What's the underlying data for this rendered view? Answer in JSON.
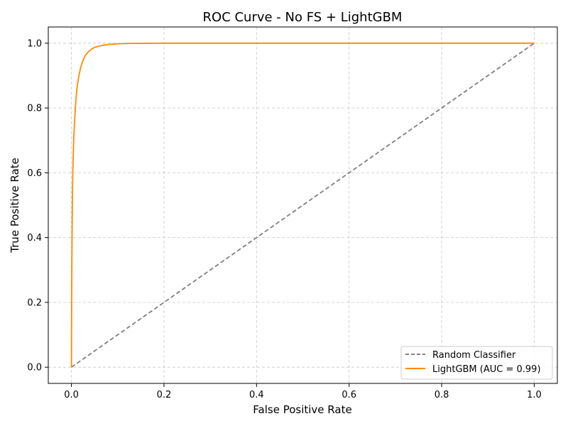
{
  "chart_data": {
    "type": "line",
    "title": "ROC Curve - No FS + LightGBM",
    "xlabel": "False Positive Rate",
    "ylabel": "True Positive Rate",
    "xlim": [
      -0.05,
      1.05
    ],
    "ylim": [
      -0.05,
      1.05
    ],
    "xticks": [
      "0.0",
      "0.2",
      "0.4",
      "0.6",
      "0.8",
      "1.0"
    ],
    "yticks": [
      "0.0",
      "0.2",
      "0.4",
      "0.6",
      "0.8",
      "1.0"
    ],
    "grid": true,
    "legend_position": "bottom-right",
    "series": [
      {
        "name": "Random Classifier",
        "style": "dashed",
        "color": "#808080",
        "x": [
          0,
          1
        ],
        "y": [
          0,
          1
        ]
      },
      {
        "name": "LightGBM (AUC = 0.99)",
        "style": "solid",
        "color": "#ff8c00",
        "x": [
          0,
          0.0005,
          0.001,
          0.002,
          0.003,
          0.004,
          0.005,
          0.006,
          0.008,
          0.01,
          0.012,
          0.015,
          0.018,
          0.02,
          0.025,
          0.03,
          0.035,
          0.04,
          0.045,
          0.05,
          0.06,
          0.07,
          0.08,
          0.09,
          0.1,
          0.12,
          0.15,
          0.2,
          0.3,
          0.5,
          0.75,
          1.0
        ],
        "y": [
          0,
          0.2,
          0.33,
          0.5,
          0.6,
          0.66,
          0.7,
          0.735,
          0.79,
          0.83,
          0.86,
          0.89,
          0.912,
          0.925,
          0.947,
          0.962,
          0.971,
          0.978,
          0.983,
          0.987,
          0.991,
          0.994,
          0.996,
          0.997,
          0.998,
          0.999,
          0.9995,
          1.0,
          1.0,
          1.0,
          1.0,
          1.0
        ]
      }
    ]
  }
}
